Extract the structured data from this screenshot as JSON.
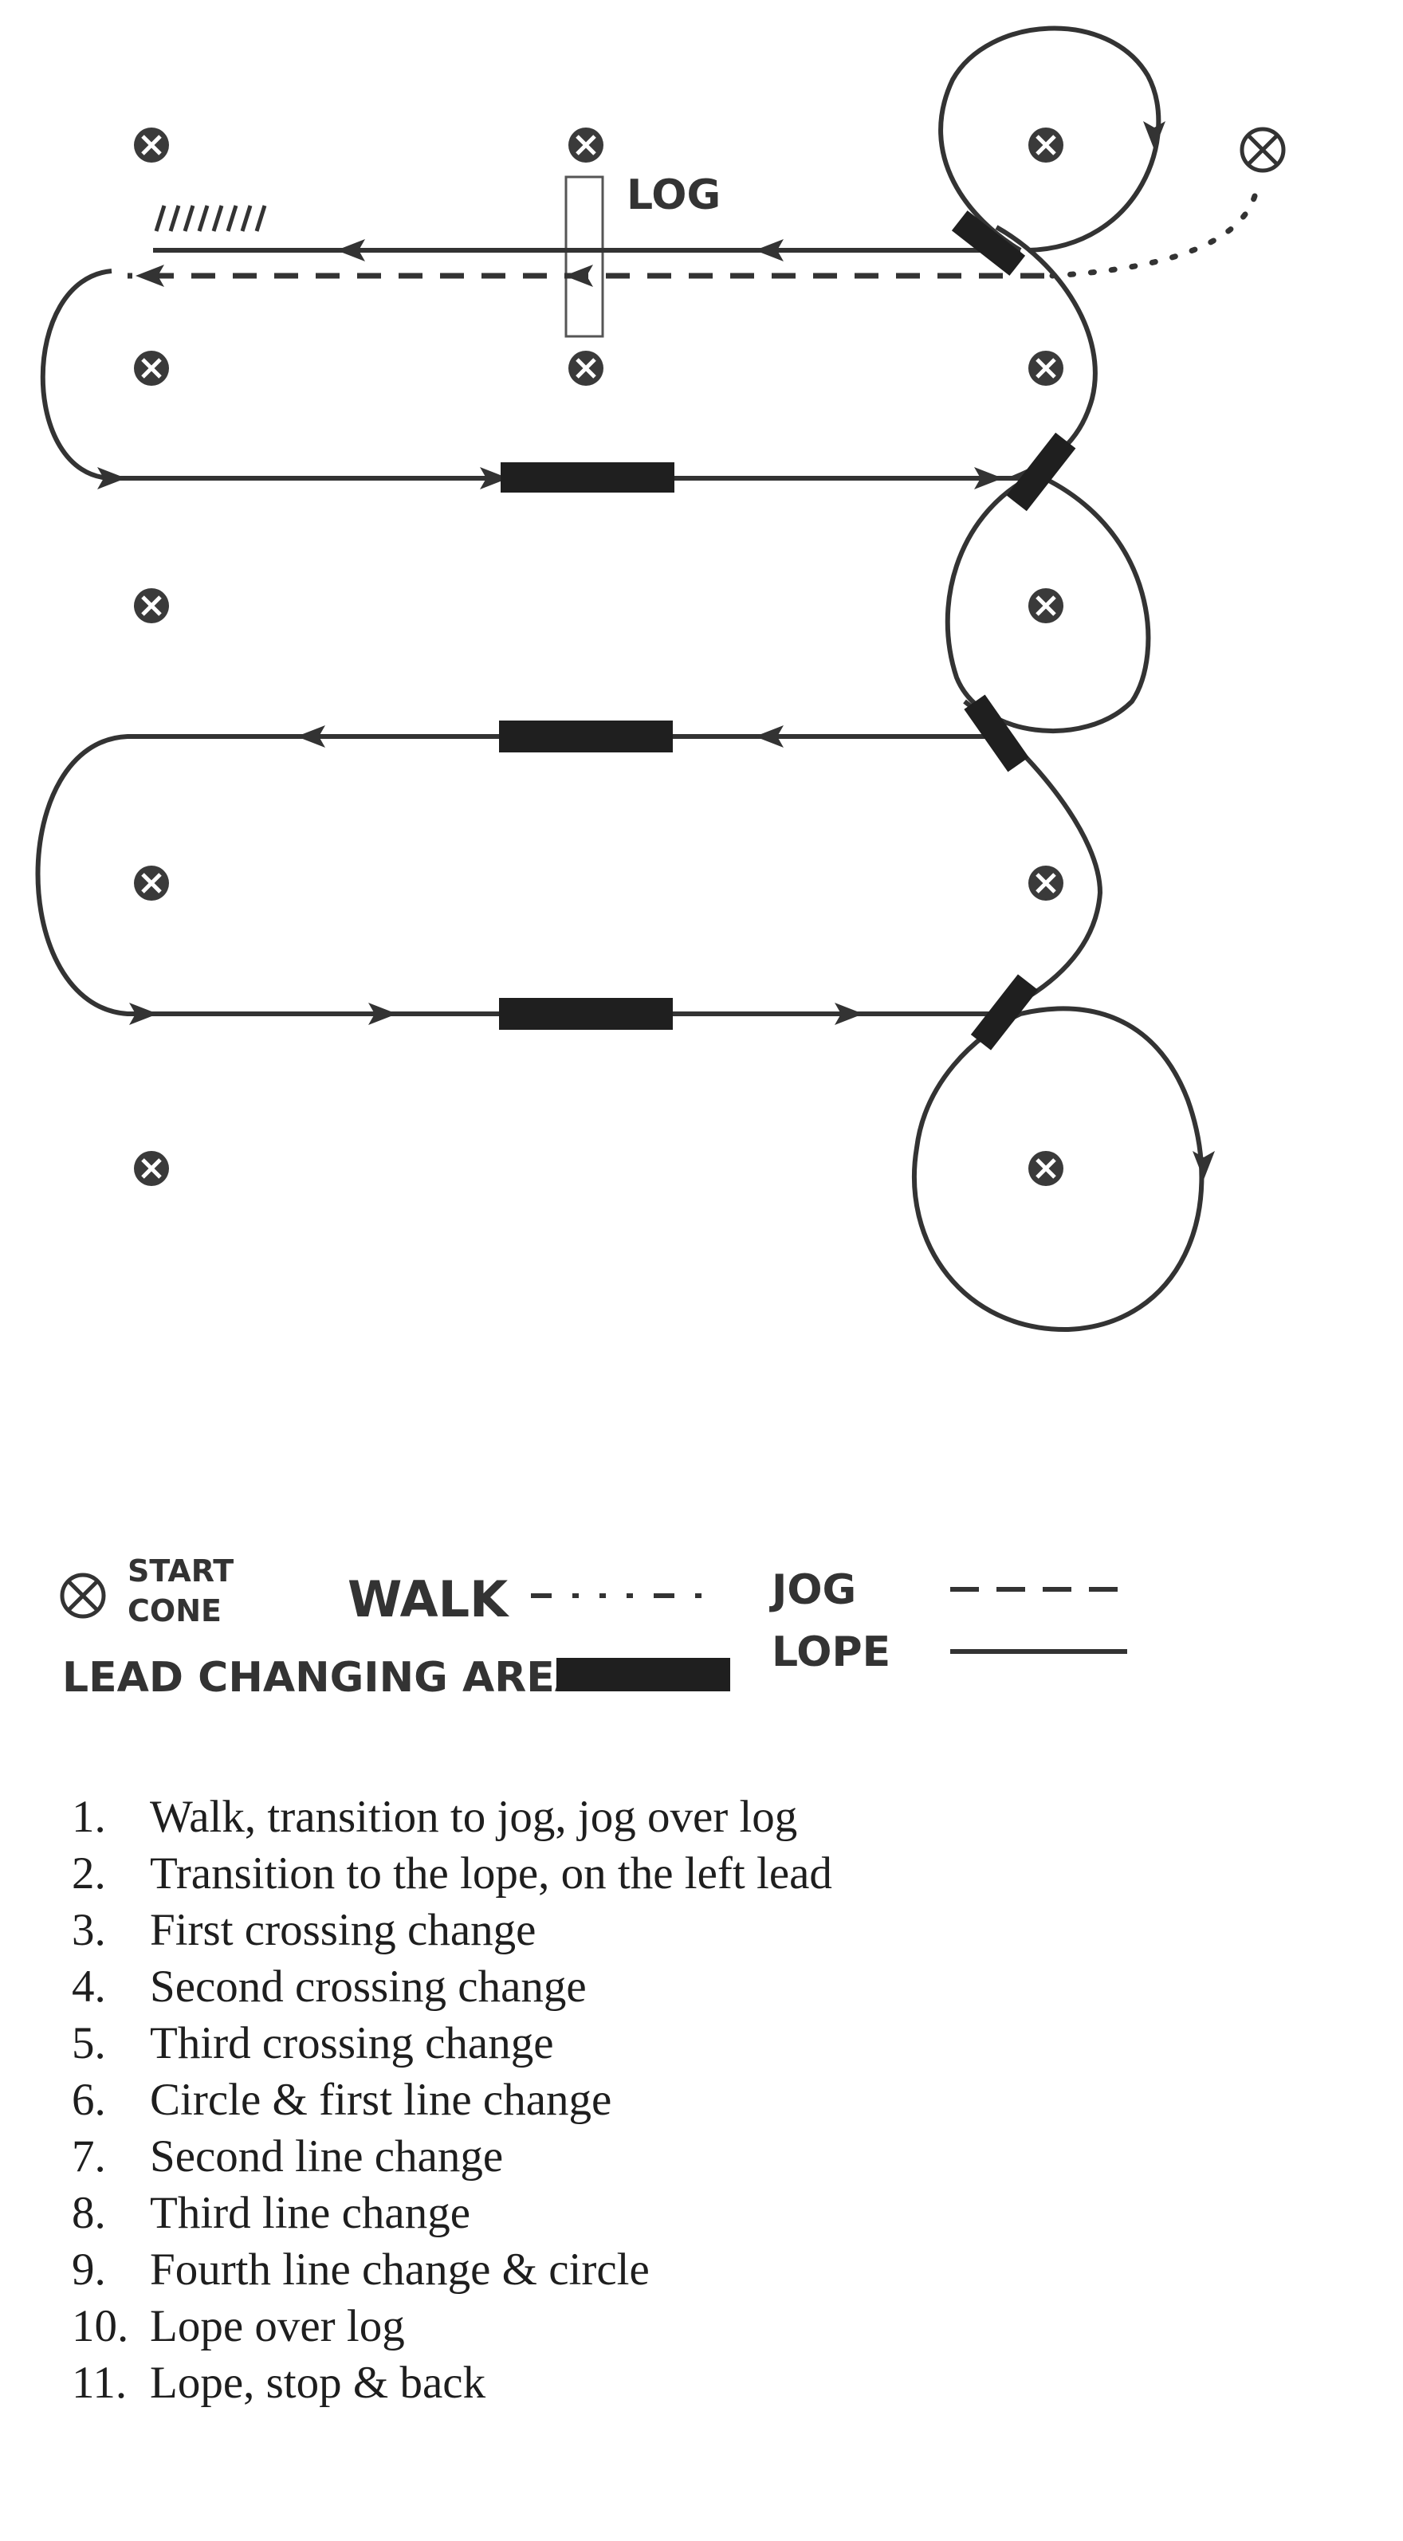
{
  "log_label": "LOG",
  "legend": {
    "start_line1": "START",
    "start_line2": "CONE",
    "walk": "WALK",
    "jog": "JOG",
    "lope": "LOPE",
    "lead_changing_area": "LEAD CHANGING AREA"
  },
  "instructions": [
    {
      "num": "1.",
      "text": "Walk, transition to jog, jog over log"
    },
    {
      "num": "2.",
      "text": "Transition to the lope, on the left lead"
    },
    {
      "num": "3.",
      "text": "First crossing change"
    },
    {
      "num": "4.",
      "text": "Second crossing change"
    },
    {
      "num": "5.",
      "text": "Third crossing change"
    },
    {
      "num": "6.",
      "text": "Circle & first line change"
    },
    {
      "num": "7.",
      "text": "Second line change"
    },
    {
      "num": "8.",
      "text": "Third line change"
    },
    {
      "num": "9.",
      "text": "Fourth line change & circle"
    },
    {
      "num": "10.",
      "text": "Lope over log"
    },
    {
      "num": "11.",
      "text": "Lope, stop & back"
    }
  ],
  "colors": {
    "line": "#333333",
    "bar": "#1f1f1f",
    "text": "#1e1e1e"
  }
}
